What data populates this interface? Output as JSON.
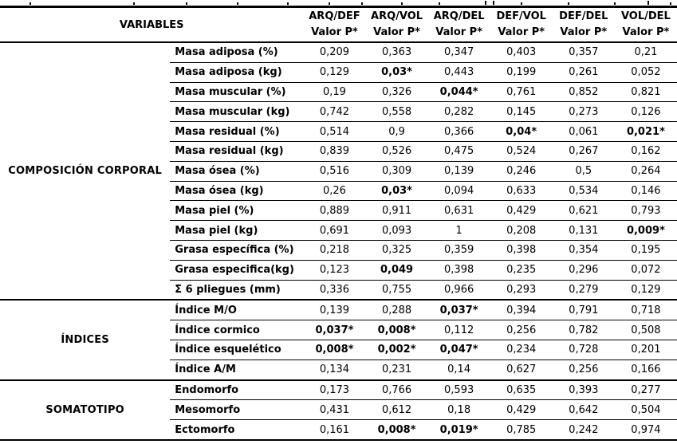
{
  "table": {
    "variables_header": "VARIABLES",
    "value_header": "Valor P*",
    "group_columns": [
      "ARQ/DEF",
      "ARQ/VOL",
      "ARQ/DEL",
      "DEF/VOL",
      "DEF/DEL",
      "VOL/DEL"
    ],
    "sections": [
      {
        "name": "COMPOSICIÓN CORPORAL",
        "rows": [
          {
            "label": "Masa adiposa (%)",
            "values": [
              "0,209",
              "0,363",
              "0,347",
              "0,403",
              "0,357",
              "0,21"
            ],
            "bold": []
          },
          {
            "label": "Masa adiposa (kg)",
            "values": [
              "0,129",
              "0,03*",
              "0,443",
              "0,199",
              "0,261",
              "0,052"
            ],
            "bold": [
              1
            ]
          },
          {
            "label": "Masa muscular (%)",
            "values": [
              "0,19",
              "0,326",
              "0,044*",
              "0,761",
              "0,852",
              "0,821"
            ],
            "bold": [
              2
            ]
          },
          {
            "label": "Masa muscular (kg)",
            "values": [
              "0,742",
              "0,558",
              "0,282",
              "0,145",
              "0,273",
              "0,126"
            ],
            "bold": []
          },
          {
            "label": "Masa residual (%)",
            "values": [
              "0,514",
              "0,9",
              "0,366",
              "0,04*",
              "0,061",
              "0,021*"
            ],
            "bold": [
              3,
              5
            ]
          },
          {
            "label": "Masa residual (kg)",
            "values": [
              "0,839",
              "0,526",
              "0,475",
              "0,524",
              "0,267",
              "0,162"
            ],
            "bold": []
          },
          {
            "label": "Masa ósea (%)",
            "values": [
              "0,516",
              "0,309",
              "0,139",
              "0,246",
              "0,5",
              "0,264"
            ],
            "bold": []
          },
          {
            "label": "Masa ósea (kg)",
            "values": [
              "0,26",
              "0,03*",
              "0,094",
              "0,633",
              "0,534",
              "0,146"
            ],
            "bold": [
              1
            ]
          },
          {
            "label": "Masa piel (%)",
            "values": [
              "0,889",
              "0,911",
              "0,631",
              "0,429",
              "0,621",
              "0,793"
            ],
            "bold": []
          },
          {
            "label": "Masa piel (kg)",
            "values": [
              "0,691",
              "0,093",
              "1",
              "0,208",
              "0,131",
              "0,009*"
            ],
            "bold": [
              5
            ]
          },
          {
            "label": "Grasa específica (%)",
            "values": [
              "0,218",
              "0,325",
              "0,359",
              "0,398",
              "0,354",
              "0,195"
            ],
            "bold": []
          },
          {
            "label": "Grasa especifica(kg)",
            "values": [
              "0,123",
              "0,049",
              "0,398",
              "0,235",
              "0,296",
              "0,072"
            ],
            "bold": [
              1
            ]
          },
          {
            "label": "Σ 6 pliegues (mm)",
            "values": [
              "0,336",
              "0,755",
              "0,966",
              "0,293",
              "0,279",
              "0,129"
            ],
            "bold": []
          }
        ]
      },
      {
        "name": "ÍNDICES",
        "rows": [
          {
            "label": "Índice M/O",
            "values": [
              "0,139",
              "0,288",
              "0,037*",
              "0,394",
              "0,791",
              "0,718"
            ],
            "bold": [
              2
            ]
          },
          {
            "label": "Índice cormico",
            "values": [
              "0,037*",
              "0,008*",
              "0,112",
              "0,256",
              "0,782",
              "0,508"
            ],
            "bold": [
              0,
              1
            ]
          },
          {
            "label": "Índice esquelético",
            "values": [
              "0,008*",
              "0,002*",
              "0,047*",
              "0,234",
              "0,728",
              "0,201"
            ],
            "bold": [
              0,
              1,
              2
            ]
          },
          {
            "label": "Índice A/M",
            "values": [
              "0,134",
              "0,231",
              "0,14",
              "0,627",
              "0,256",
              "0,166"
            ],
            "bold": []
          }
        ]
      },
      {
        "name": "SOMATOTIPO",
        "rows": [
          {
            "label": "Endomorfo",
            "values": [
              "0,173",
              "0,766",
              "0,593",
              "0,635",
              "0,393",
              "0,277"
            ],
            "bold": []
          },
          {
            "label": "Mesomorfo",
            "values": [
              "0,431",
              "0,612",
              "0,18",
              "0,429",
              "0,642",
              "0,504"
            ],
            "bold": []
          },
          {
            "label": "Ectomorfo",
            "values": [
              "0,161",
              "0,008*",
              "0,019*",
              "0,785",
              "0,242",
              "0,974"
            ],
            "bold": [
              1,
              2
            ]
          }
        ]
      }
    ]
  }
}
